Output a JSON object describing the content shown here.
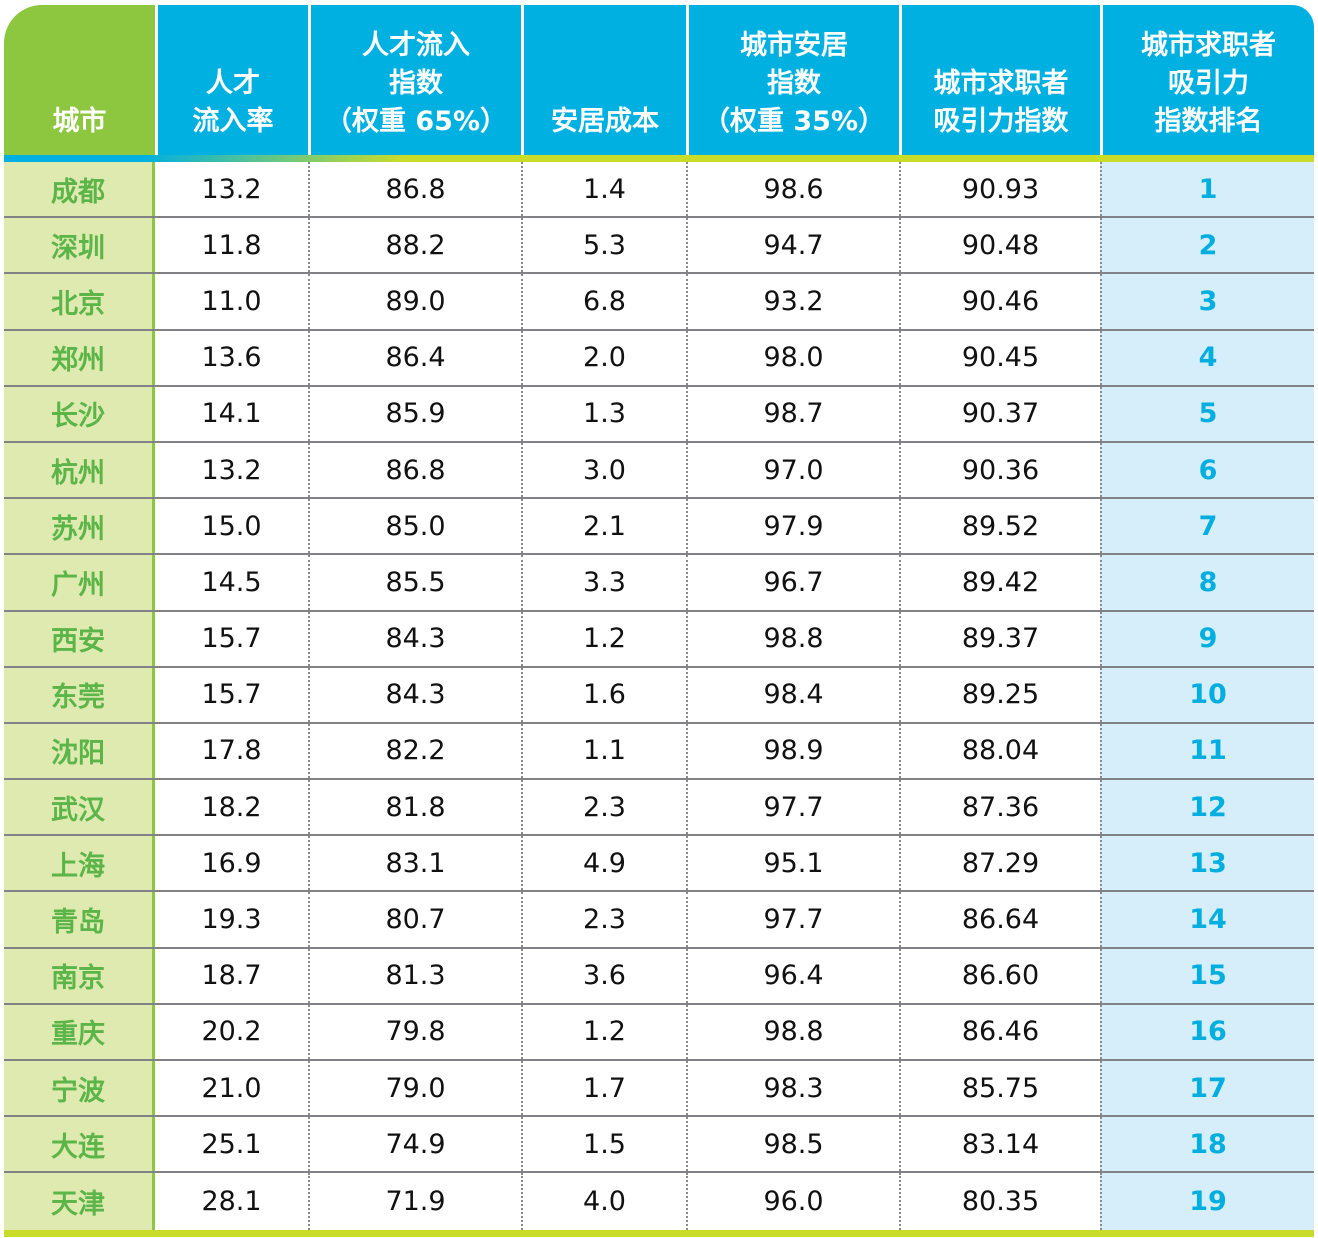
{
  "headers": [
    [
      "城市"
    ],
    [
      "人才",
      "流入率"
    ],
    [
      "人才流入",
      "指数",
      "（权重 65%）"
    ],
    [
      "安居成本"
    ],
    [
      "城市安居",
      "指数",
      "（权重 35%）"
    ],
    [
      "城市求职者",
      "吸引力指数"
    ],
    [
      "城市求职者",
      "吸引力",
      "指数排名"
    ]
  ],
  "rows": [
    [
      "成都",
      "13.2",
      "86.8",
      "1.4",
      "98.6",
      "90.93",
      "1"
    ],
    [
      "深圳",
      "11.8",
      "88.2",
      "5.3",
      "94.7",
      "90.48",
      "2"
    ],
    [
      "北京",
      "11.0",
      "89.0",
      "6.8",
      "93.2",
      "90.46",
      "3"
    ],
    [
      "郑州",
      "13.6",
      "86.4",
      "2.0",
      "98.0",
      "90.45",
      "4"
    ],
    [
      "长沙",
      "14.1",
      "85.9",
      "1.3",
      "98.7",
      "90.37",
      "5"
    ],
    [
      "杭州",
      "13.2",
      "86.8",
      "3.0",
      "97.0",
      "90.36",
      "6"
    ],
    [
      "苏州",
      "15.0",
      "85.0",
      "2.1",
      "97.9",
      "89.52",
      "7"
    ],
    [
      "广州",
      "14.5",
      "85.5",
      "3.3",
      "96.7",
      "89.42",
      "8"
    ],
    [
      "西安",
      "15.7",
      "84.3",
      "1.2",
      "98.8",
      "89.37",
      "9"
    ],
    [
      "东莞",
      "15.7",
      "84.3",
      "1.6",
      "98.4",
      "89.25",
      "10"
    ],
    [
      "沈阳",
      "17.8",
      "82.2",
      "1.1",
      "98.9",
      "88.04",
      "11"
    ],
    [
      "武汉",
      "18.2",
      "81.8",
      "2.3",
      "97.7",
      "87.36",
      "12"
    ],
    [
      "上海",
      "16.9",
      "83.1",
      "4.9",
      "95.1",
      "87.29",
      "13"
    ],
    [
      "青岛",
      "19.3",
      "80.7",
      "2.3",
      "97.7",
      "86.64",
      "14"
    ],
    [
      "南京",
      "18.7",
      "81.3",
      "3.6",
      "96.4",
      "86.60",
      "15"
    ],
    [
      "重庆",
      "20.2",
      "79.8",
      "1.2",
      "98.8",
      "86.46",
      "16"
    ],
    [
      "宁波",
      "21.0",
      "79.0",
      "1.7",
      "98.3",
      "85.75",
      "17"
    ],
    [
      "大连",
      "25.1",
      "74.9",
      "1.5",
      "98.5",
      "83.14",
      "18"
    ],
    [
      "天津",
      "28.1",
      "71.9",
      "4.0",
      "96.0",
      "80.35",
      "19"
    ]
  ],
  "colors": {
    "header_blue": "#00b0e0",
    "header_green": "#8dc63f",
    "city_bg": "#dfeab0",
    "city_text": "#5cb548",
    "rank_bg": "#d6eef9",
    "rank_text": "#00aee0"
  }
}
